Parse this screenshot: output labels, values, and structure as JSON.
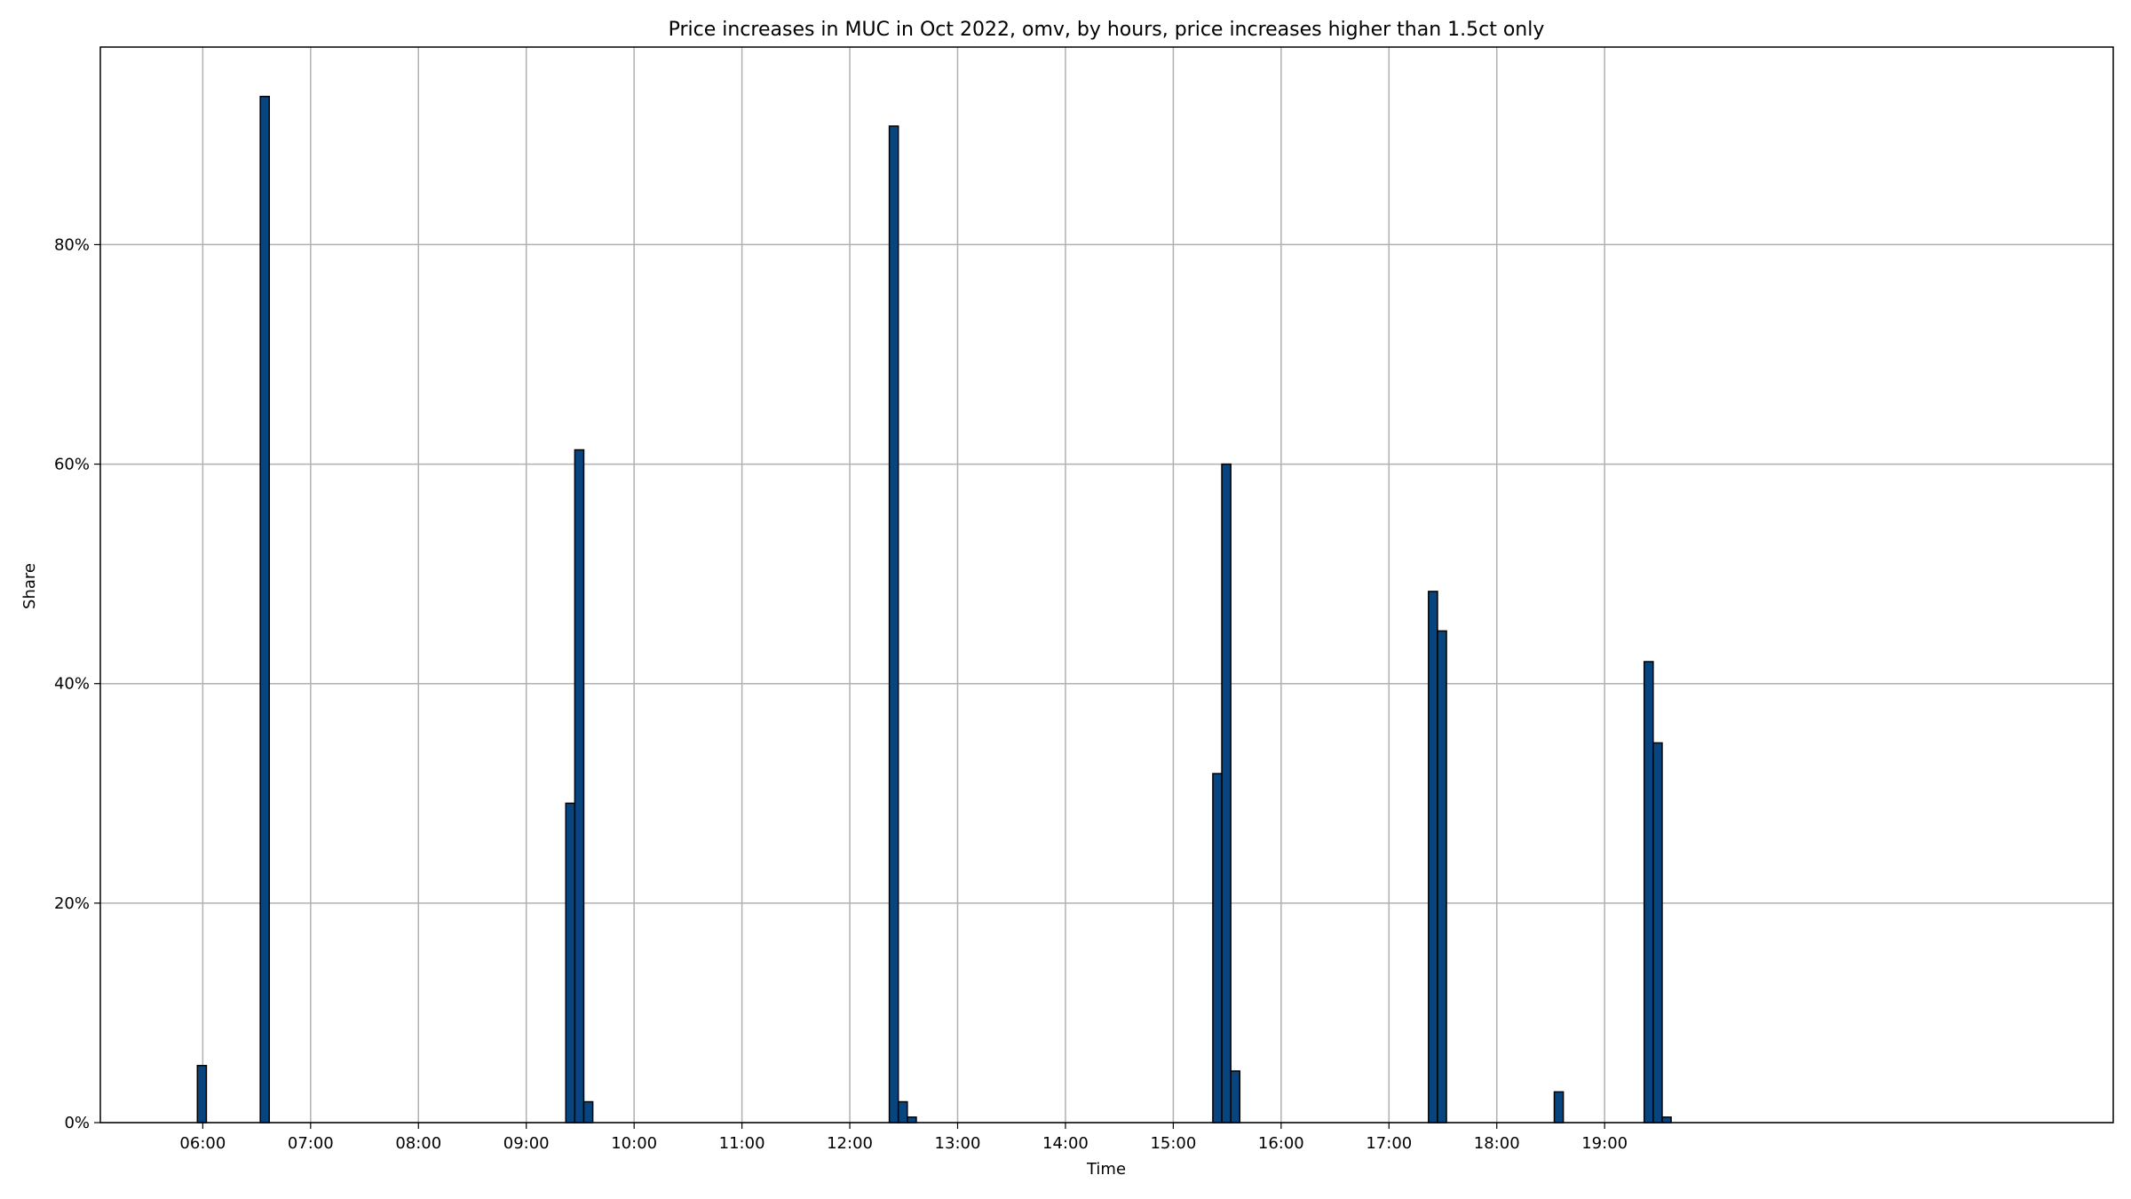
{
  "chart_data": {
    "type": "bar",
    "title": "Price increases in MUC in Oct 2022, omv, by hours, price increases higher than 1.5ct only",
    "xlabel": "Time",
    "ylabel": "Share",
    "x_unit": "hours of day",
    "bin_width_minutes": 5,
    "x_tick_labels": [
      "06:00",
      "07:00",
      "08:00",
      "09:00",
      "10:00",
      "11:00",
      "12:00",
      "13:00",
      "14:00",
      "15:00",
      "16:00",
      "17:00",
      "18:00",
      "19:00"
    ],
    "y_tick_labels": [
      "0%",
      "20%",
      "40%",
      "60%",
      "80%"
    ],
    "y_ticks": [
      0,
      20,
      40,
      60,
      80
    ],
    "xlim": [
      "05:03",
      "23:43"
    ],
    "ylim": [
      0,
      98
    ],
    "grid": true,
    "legend": "none",
    "bar_color": "#08457e",
    "bars": [
      {
        "time": "05:57",
        "value": 5.2
      },
      {
        "time": "06:32",
        "value": 93.5
      },
      {
        "time": "09:22",
        "value": 29.1
      },
      {
        "time": "09:27",
        "value": 61.3
      },
      {
        "time": "09:32",
        "value": 1.9
      },
      {
        "time": "12:22",
        "value": 90.8
      },
      {
        "time": "12:27",
        "value": 1.9
      },
      {
        "time": "12:32",
        "value": 0.5
      },
      {
        "time": "15:22",
        "value": 31.8
      },
      {
        "time": "15:27",
        "value": 60.0
      },
      {
        "time": "15:32",
        "value": 4.7
      },
      {
        "time": "17:22",
        "value": 48.4
      },
      {
        "time": "17:27",
        "value": 44.8
      },
      {
        "time": "18:32",
        "value": 2.8
      },
      {
        "time": "19:22",
        "value": 42.0
      },
      {
        "time": "19:27",
        "value": 34.6
      },
      {
        "time": "19:32",
        "value": 0.5
      }
    ]
  }
}
